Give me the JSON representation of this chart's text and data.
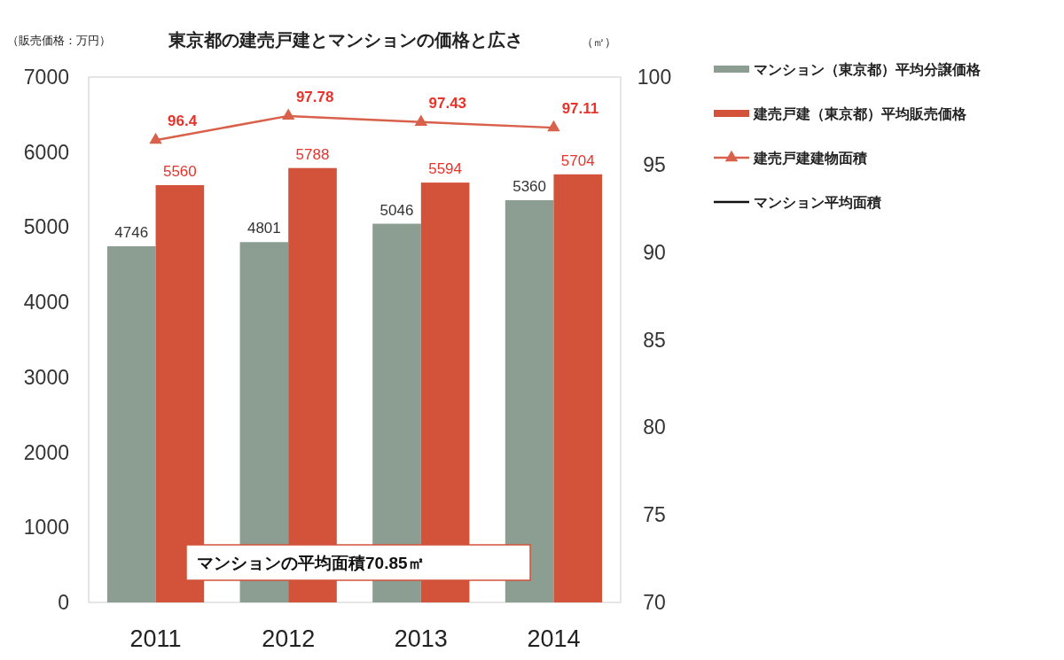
{
  "chart_data": {
    "type": "bar",
    "title": "東京都の建売戸建とマンションの価格と広さ",
    "ylabel": "（販売価格：万円）",
    "y2label": "（㎡）",
    "categories": [
      "2011",
      "2012",
      "2013",
      "2014"
    ],
    "series": [
      {
        "name": "マンション（東京都）平均分譲価格",
        "color": "#8c9e92",
        "values": [
          4746,
          4801,
          5046,
          5360
        ]
      },
      {
        "name": "建売戸建（東京都）平均販売価格",
        "color": "#d2533a",
        "values": [
          5560,
          5788,
          5594,
          5704
        ]
      },
      {
        "name": "建売戸建建物面積",
        "type": "line",
        "axis": "y2",
        "color": "#d9604a",
        "marker": "triangle",
        "values": [
          96.4,
          97.78,
          97.43,
          97.11
        ]
      },
      {
        "name": "マンション平均面積",
        "type": "line",
        "axis": "y2",
        "color": "#111111",
        "values": [
          null,
          null,
          null,
          null
        ]
      }
    ],
    "ylim": [
      0,
      7000
    ],
    "yticks": [
      0,
      1000,
      2000,
      3000,
      4000,
      5000,
      6000,
      7000
    ],
    "y2lim": [
      70,
      100
    ],
    "y2ticks": [
      70,
      75,
      80,
      85,
      90,
      95,
      100
    ],
    "data_labels": true,
    "legend": "right",
    "annotations": [
      "マンションの平均面積70.85㎡"
    ]
  }
}
